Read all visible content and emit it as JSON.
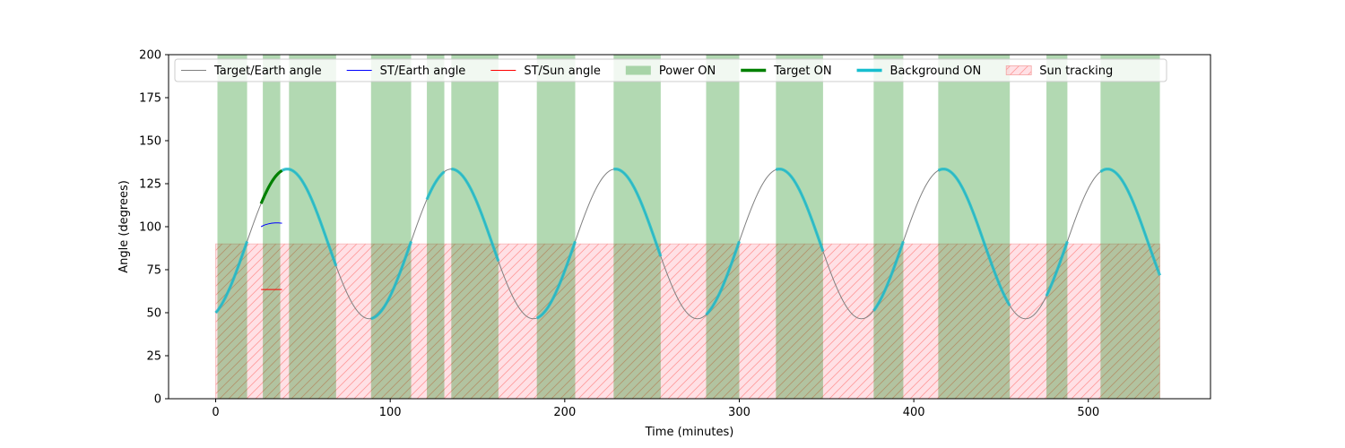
{
  "chart_data": {
    "type": "line",
    "xlabel": "Time (minutes)",
    "ylabel": "Angle (degrees)",
    "xlim": [
      -27,
      570
    ],
    "ylim": [
      0,
      200
    ],
    "xticks": [
      0,
      100,
      200,
      300,
      400,
      500
    ],
    "yticks": [
      0,
      25,
      50,
      75,
      100,
      125,
      150,
      175,
      200
    ],
    "grid": false,
    "legend_position": "top",
    "colors": {
      "target_earth": "#808080",
      "st_earth": "#0000ff",
      "st_sun": "#ff0000",
      "power_on": "#008000",
      "target_on": "#008000",
      "background_on": "#17becf",
      "sun_tracking": "#ffb6c1"
    },
    "legend": [
      {
        "key": "target_earth",
        "label": "Target/Earth angle",
        "style": "line"
      },
      {
        "key": "st_earth",
        "label": "ST/Earth angle",
        "style": "line"
      },
      {
        "key": "st_sun",
        "label": "ST/Sun angle",
        "style": "line"
      },
      {
        "key": "power_on",
        "label": "Power ON",
        "style": "patch"
      },
      {
        "key": "target_on",
        "label": "Target ON",
        "style": "thick"
      },
      {
        "key": "background_on",
        "label": "Background ON",
        "style": "thick"
      },
      {
        "key": "sun_tracking",
        "label": "Sun tracking",
        "style": "hatch"
      }
    ],
    "target_earth_model": {
      "center": 90,
      "amplitude": 43.5,
      "period": 94,
      "phase_peak_time": 41
    },
    "time_range": [
      0,
      540
    ],
    "power_on_intervals": [
      [
        1,
        18
      ],
      [
        27,
        37
      ],
      [
        42,
        69
      ],
      [
        89,
        112
      ],
      [
        121,
        131
      ],
      [
        135,
        162
      ],
      [
        184,
        206
      ],
      [
        228,
        255
      ],
      [
        281,
        300
      ],
      [
        321,
        348
      ],
      [
        377,
        394
      ],
      [
        414,
        455
      ],
      [
        476,
        488
      ],
      [
        507,
        541
      ]
    ],
    "target_on_intervals": [
      [
        26,
        38
      ]
    ],
    "background_on_intervals": [
      [
        0,
        18
      ],
      [
        38,
        69
      ],
      [
        89,
        112
      ],
      [
        121,
        131
      ],
      [
        135,
        162
      ],
      [
        184,
        206
      ],
      [
        228,
        255
      ],
      [
        281,
        300
      ],
      [
        321,
        348
      ],
      [
        377,
        394
      ],
      [
        414,
        455
      ],
      [
        476,
        488
      ],
      [
        507,
        541
      ]
    ],
    "sun_tracking": {
      "x": [
        0,
        541
      ],
      "y": [
        0,
        90
      ]
    },
    "st_earth_angle": {
      "x": [
        26,
        28,
        30,
        32,
        34,
        36,
        38
      ],
      "y": [
        100,
        101,
        101.6,
        102,
        102.2,
        102.2,
        102
      ]
    },
    "st_sun_angle": {
      "x": [
        26,
        38
      ],
      "y": [
        63.5,
        63.5
      ]
    }
  }
}
